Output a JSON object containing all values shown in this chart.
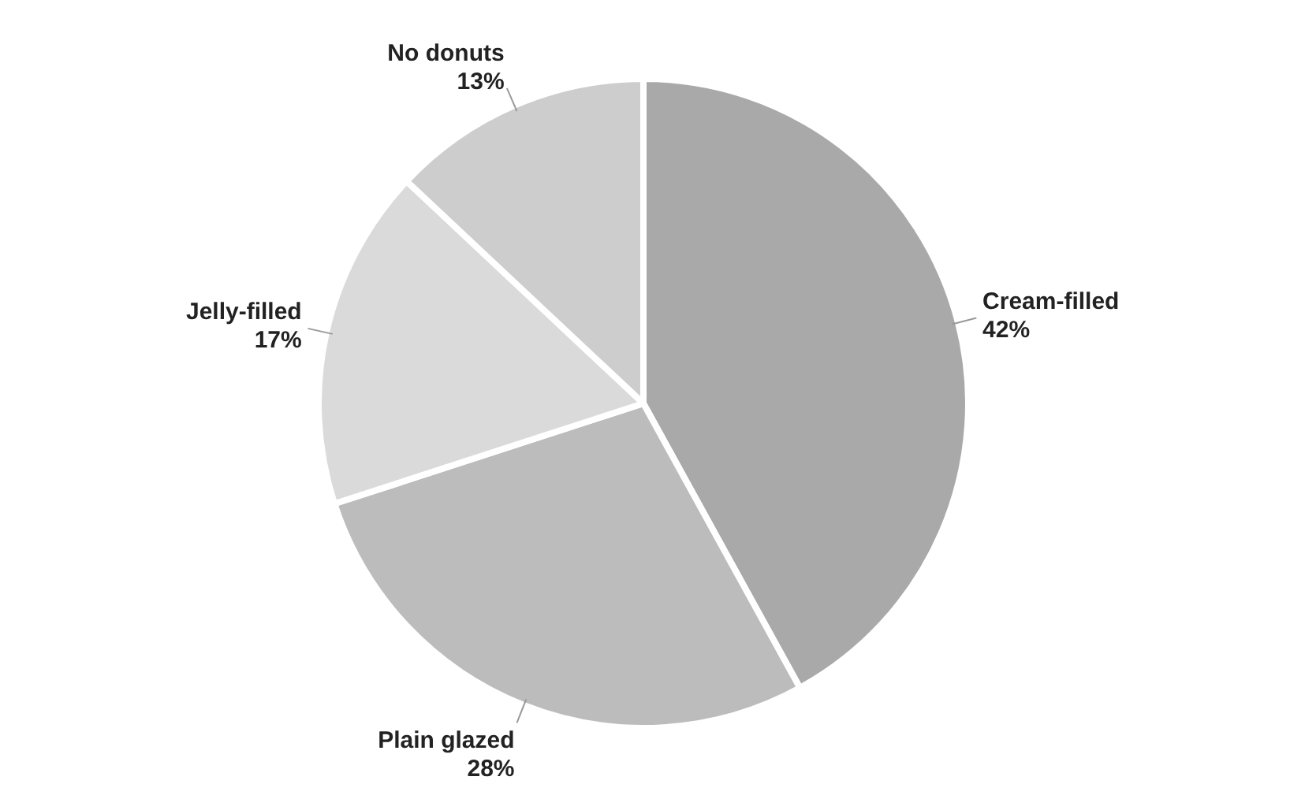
{
  "chart_data": {
    "type": "pie",
    "categories": [
      "Cream-filled",
      "Plain glazed",
      "Jelly-filled",
      "No donuts"
    ],
    "values": [
      42,
      28,
      17,
      13
    ],
    "colors": [
      "#a9a9a9",
      "#bcbcbc",
      "#dadada",
      "#cdcdcd"
    ],
    "value_labels": [
      "42%",
      "28%",
      "17%",
      "13%"
    ],
    "legend": false
  }
}
